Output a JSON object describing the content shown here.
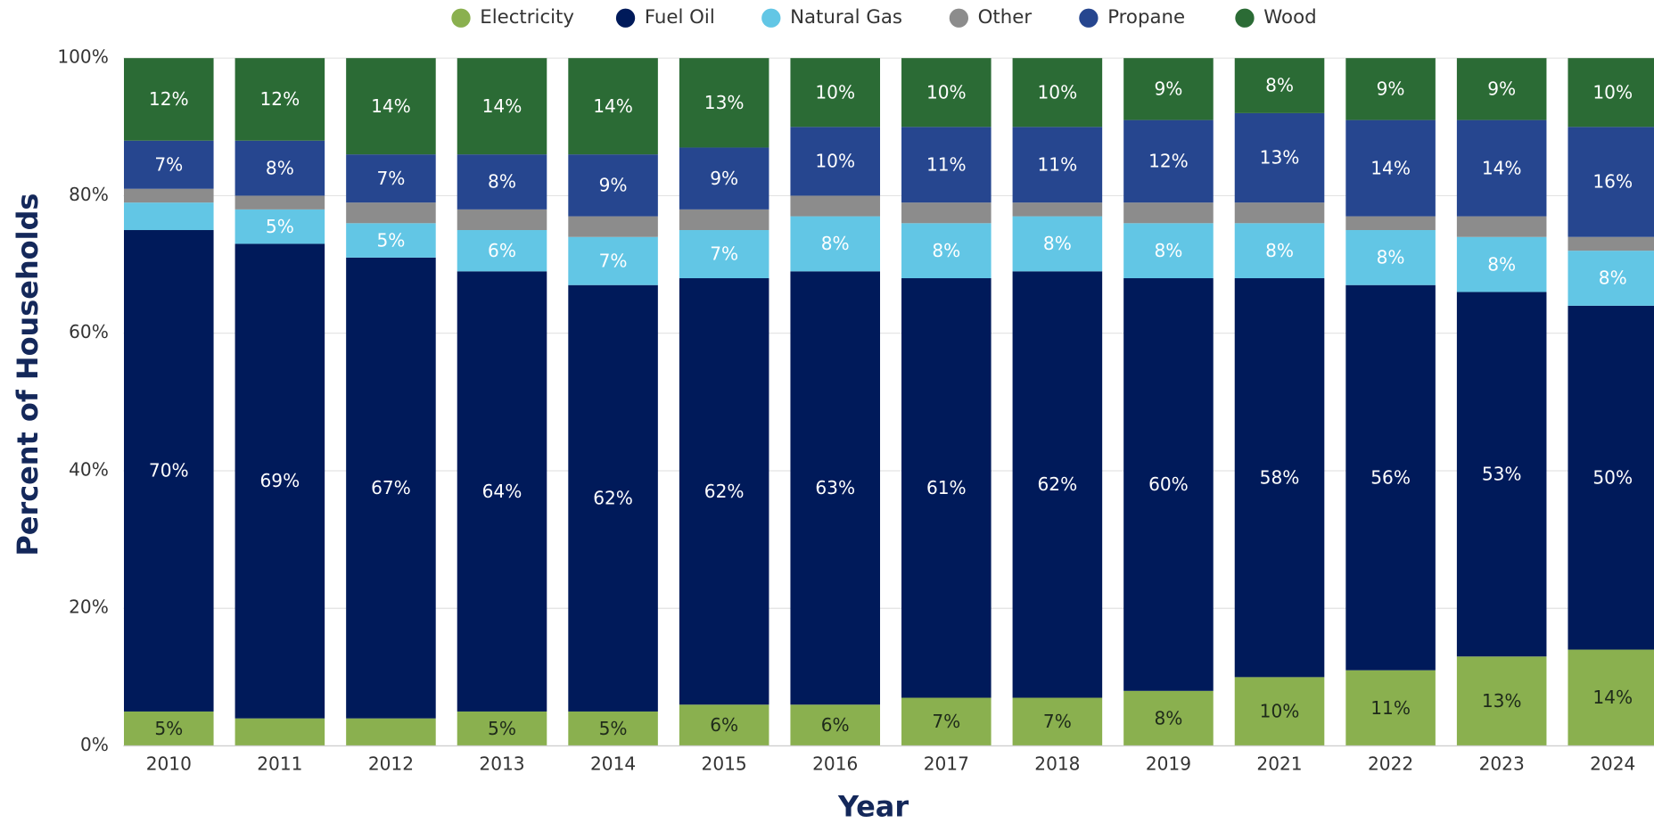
{
  "chart_data": {
    "type": "stacked_bar",
    "xlabel": "Year",
    "ylabel": "Percent of Households",
    "categories": [
      "2010",
      "2011",
      "2012",
      "2013",
      "2014",
      "2015",
      "2016",
      "2017",
      "2018",
      "2019",
      "2021",
      "2022",
      "2023",
      "2024"
    ],
    "ylim": [
      0,
      100
    ],
    "yticks": [
      {
        "value": 0,
        "label": "0%"
      },
      {
        "value": 20,
        "label": "20%"
      },
      {
        "value": 40,
        "label": "40%"
      },
      {
        "value": 60,
        "label": "60%"
      },
      {
        "value": 80,
        "label": "80%"
      },
      {
        "value": 100,
        "label": "100%"
      }
    ],
    "grid": true,
    "legend": "top",
    "series": [
      {
        "name": "Electricity",
        "color": "#8ab04f",
        "values": [
          5,
          4,
          4,
          5,
          5,
          6,
          6,
          7,
          7,
          8,
          10,
          11,
          13,
          14
        ],
        "value_labels": [
          "5%",
          null,
          null,
          "5%",
          "5%",
          "6%",
          "6%",
          "7%",
          "7%",
          "8%",
          "10%",
          "11%",
          "13%",
          "14%"
        ]
      },
      {
        "name": "Fuel Oil",
        "color": "#001a5a",
        "values": [
          70,
          69,
          67,
          64,
          62,
          62,
          63,
          61,
          62,
          60,
          58,
          56,
          53,
          50
        ],
        "value_labels": [
          "70%",
          "69%",
          "67%",
          "64%",
          "62%",
          "62%",
          "63%",
          "61%",
          "62%",
          "60%",
          "58%",
          "56%",
          "53%",
          "50%"
        ]
      },
      {
        "name": "Natural Gas",
        "color": "#62c6e5",
        "values": [
          4,
          5,
          5,
          6,
          7,
          7,
          8,
          8,
          8,
          8,
          8,
          8,
          8,
          8
        ],
        "value_labels": [
          null,
          "5%",
          "5%",
          "6%",
          "7%",
          "7%",
          "8%",
          "8%",
          "8%",
          "8%",
          "8%",
          "8%",
          "8%",
          "8%"
        ]
      },
      {
        "name": "Other",
        "color": "#8c8c8c",
        "values": [
          2,
          2,
          3,
          3,
          3,
          3,
          3,
          3,
          2,
          3,
          3,
          2,
          3,
          2
        ]
      },
      {
        "name": "Propane",
        "color": "#26468f",
        "values": [
          7,
          8,
          7,
          8,
          9,
          9,
          10,
          11,
          11,
          12,
          13,
          14,
          14,
          16
        ],
        "value_labels": [
          "7%",
          "8%",
          "7%",
          "8%",
          "9%",
          "9%",
          "10%",
          "11%",
          "11%",
          "12%",
          "13%",
          "14%",
          "14%",
          "16%"
        ]
      },
      {
        "name": "Wood",
        "color": "#2b6b35",
        "values": [
          12,
          12,
          14,
          14,
          14,
          13,
          10,
          10,
          10,
          9,
          8,
          9,
          9,
          10
        ],
        "value_labels": [
          "12%",
          "12%",
          "14%",
          "14%",
          "14%",
          "13%",
          "10%",
          "10%",
          "10%",
          "9%",
          "8%",
          "9%",
          "9%",
          "10%"
        ]
      }
    ]
  }
}
